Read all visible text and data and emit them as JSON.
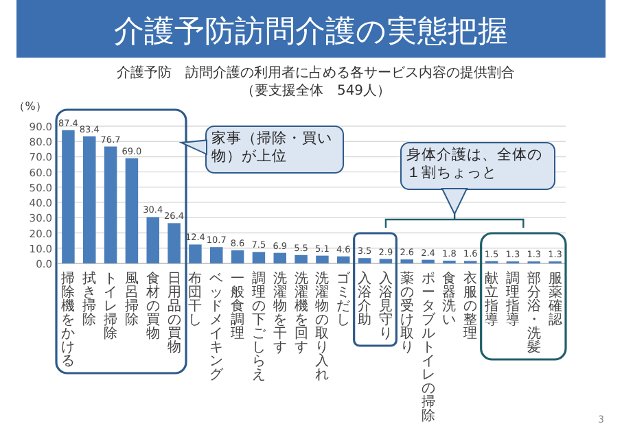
{
  "chart_data": {
    "type": "bar",
    "title": "介護予防訪問介護の実態把握",
    "subtitle": "介護予防　訪問介護の利用者に占める各サービス内容の提供割合",
    "ylabel": "（%）",
    "categories": [
      "掃除機をかける",
      "拭き掃除",
      "トイレ掃除",
      "風呂掃除",
      "食材の買物",
      "日用品の買物",
      "布団干し",
      "ベッドメイキング",
      "一般食調理",
      "調理の下ごしらえ",
      "洗濯物を干す",
      "洗濯機を回す",
      "洗濯物の取り入れ",
      "ゴミだし",
      "入浴介助",
      "入浴見守り",
      "薬の受け取り",
      "ポータブルトイレの掃除",
      "食器洗い",
      "衣服の整理",
      "献立指導",
      "調理指導",
      "部分浴・洗髪",
      "服薬確認"
    ],
    "values": [
      87.4,
      83.4,
      76.7,
      69.0,
      30.4,
      26.4,
      12.4,
      10.7,
      8.6,
      7.5,
      6.9,
      5.5,
      5.1,
      4.6,
      3.5,
      2.9,
      2.6,
      2.4,
      1.8,
      1.6,
      1.5,
      1.3,
      1.3,
      1.3
    ],
    "value_labels": [
      "87.4",
      "83.4",
      "76.7",
      "69.0",
      "30.4",
      "26.4",
      "12.4",
      "10.7",
      "8.6",
      "7.5",
      "6.9",
      "5.5",
      "5.1",
      "4.6",
      "3.5",
      "2.9",
      "2.6",
      "2.4",
      "1.8",
      "1.6",
      "1.5",
      "1.3",
      "1.3",
      "1.3"
    ],
    "color": "#4a7ebb",
    "grid": "y",
    "ylim": [
      0,
      90
    ],
    "yticks": [
      {
        "value": 0,
        "label": "0.0"
      },
      {
        "value": 10,
        "label": "10.0"
      },
      {
        "value": 20,
        "label": "20.0"
      },
      {
        "value": 30,
        "label": "30.0"
      },
      {
        "value": 40,
        "label": "40.0"
      },
      {
        "value": 50,
        "label": "50.0"
      },
      {
        "value": 60,
        "label": "60.0"
      },
      {
        "value": 70,
        "label": "70.0"
      },
      {
        "value": 80,
        "label": "80.0"
      },
      {
        "value": 90,
        "label": "90.0"
      }
    ],
    "annotations": [
      "（要支援全体　549人）",
      "家事（掃除・買い物）が上位",
      "身体介護は、全体の１割ちょっと",
      "3"
    ]
  }
}
